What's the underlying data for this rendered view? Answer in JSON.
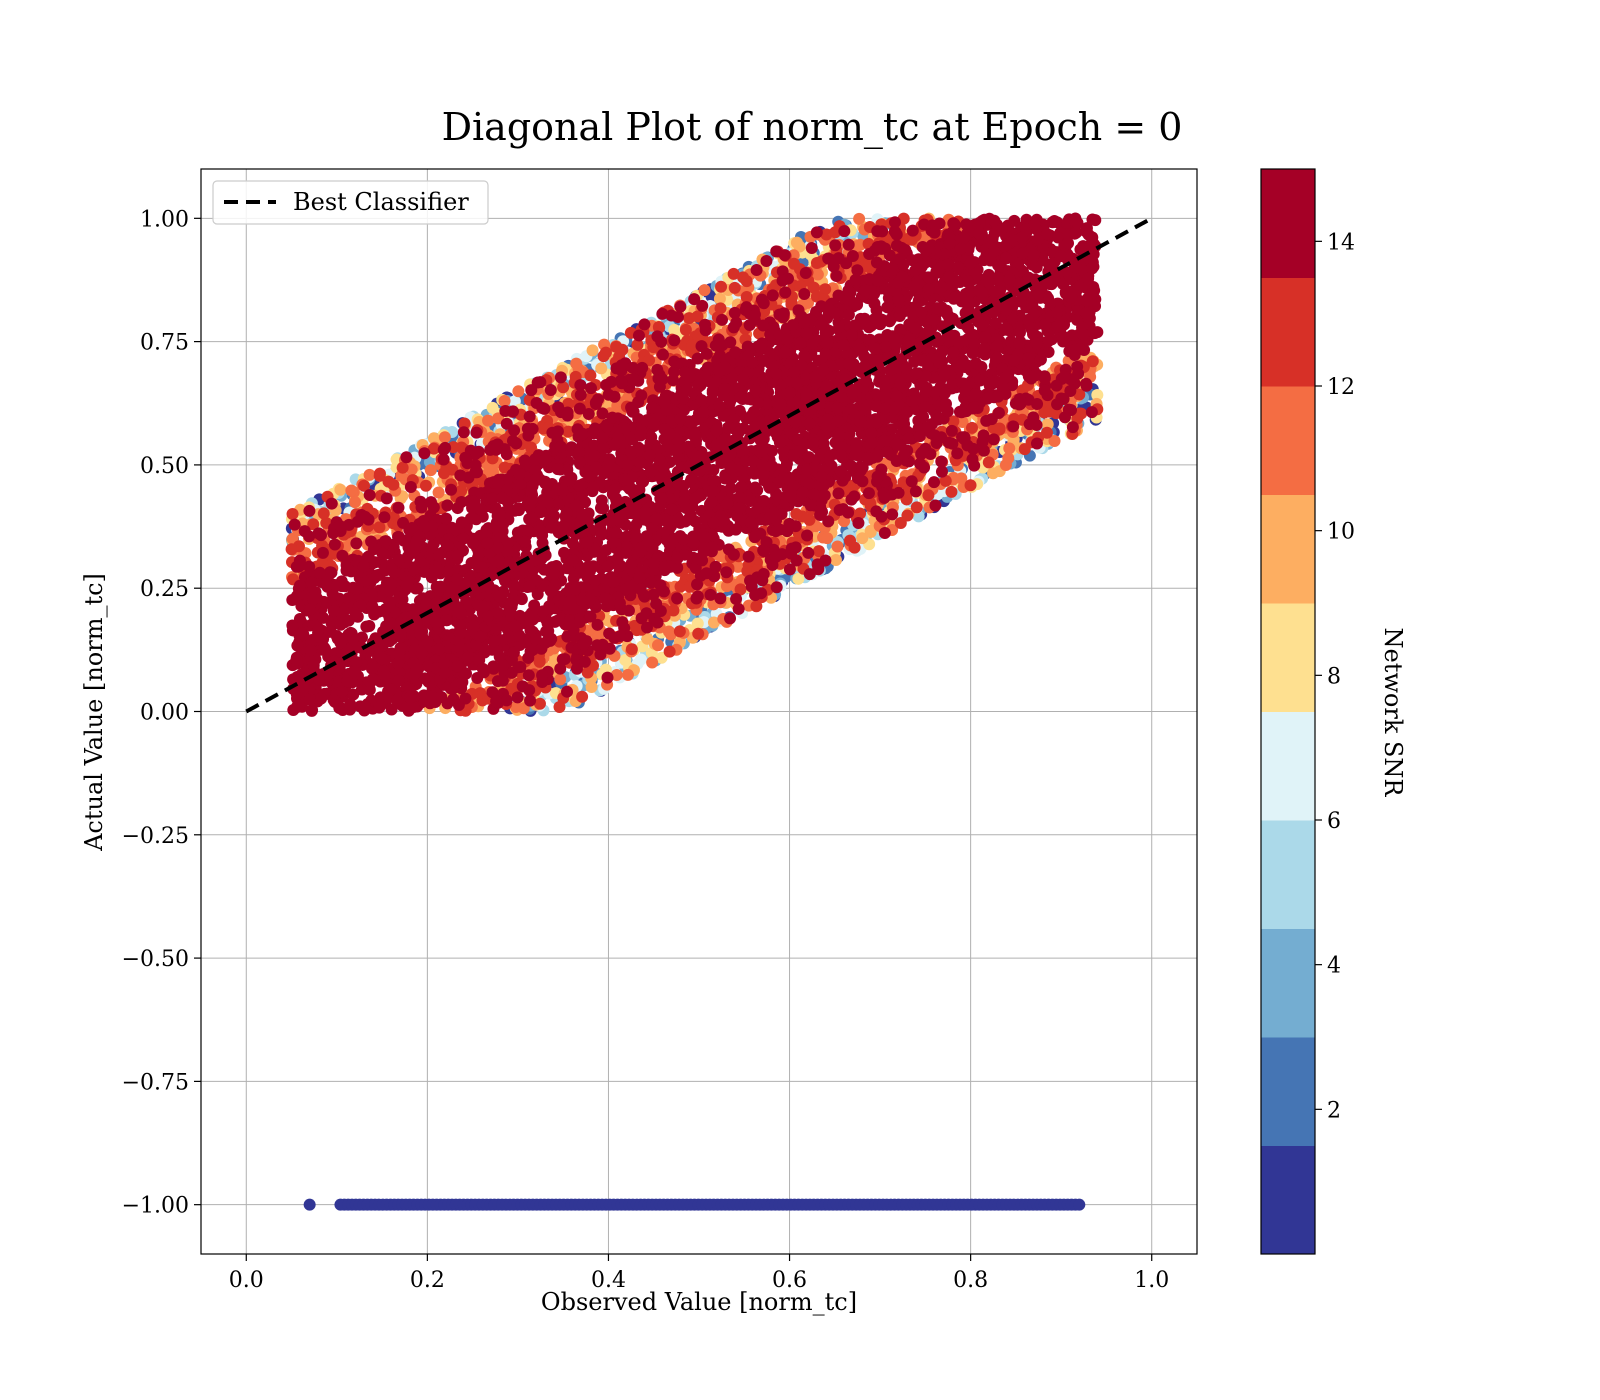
{
  "chart_data": {
    "type": "scatter",
    "title": "Diagonal Plot of norm_tc at Epoch = 0",
    "xlabel": "Observed Value [norm_tc]",
    "ylabel": "Actual Value [norm_tc]",
    "xlim": [
      -0.05,
      1.05
    ],
    "ylim": [
      -1.1,
      1.1
    ],
    "x_ticks": [
      0.0,
      0.2,
      0.4,
      0.6,
      0.8,
      1.0
    ],
    "x_tick_labels": [
      "0.0",
      "0.2",
      "0.4",
      "0.6",
      "0.8",
      "1.0"
    ],
    "y_ticks": [
      1.0,
      0.75,
      0.5,
      0.25,
      0.0,
      -0.25,
      -0.5,
      -0.75,
      -1.0
    ],
    "y_tick_labels": [
      "1.00",
      "0.75",
      "0.50",
      "0.25",
      "0.00",
      "−0.25",
      "−0.50",
      "−0.75",
      "−1.00"
    ],
    "grid": true,
    "legend": {
      "placement": "top-left",
      "entries": [
        {
          "label": "Best Classifier",
          "style": "dashed",
          "color": "#000000"
        }
      ]
    },
    "reference_line": {
      "label": "Best Classifier",
      "x": [
        0.0,
        1.0
      ],
      "y": [
        0.0,
        1.0
      ]
    },
    "point_cloud": {
      "description_bounds": {
        "main_band": {
          "x_min": 0.05,
          "x_max": 0.94,
          "y_min": 0.0,
          "y_max": 1.0,
          "center_offset": 0.0,
          "half_width": 0.35
        },
        "baseline_row": {
          "y": -1.0,
          "x_min": 0.07,
          "x_max": 0.92
        }
      },
      "baseline_color_snr": 0.5
    },
    "colorbar": {
      "label": "Network SNR",
      "range": [
        0,
        15
      ],
      "bins": 10,
      "ticks": [
        2,
        4,
        6,
        8,
        10,
        12,
        14
      ],
      "tick_labels": [
        "2",
        "4",
        "6",
        "8",
        "10",
        "12",
        "14"
      ],
      "colors": [
        "#313695",
        "#4575b4",
        "#74add1",
        "#abd9e9",
        "#e0f3f8",
        "#fee090",
        "#fdae61",
        "#f46d43",
        "#d73027",
        "#a50026"
      ]
    }
  }
}
